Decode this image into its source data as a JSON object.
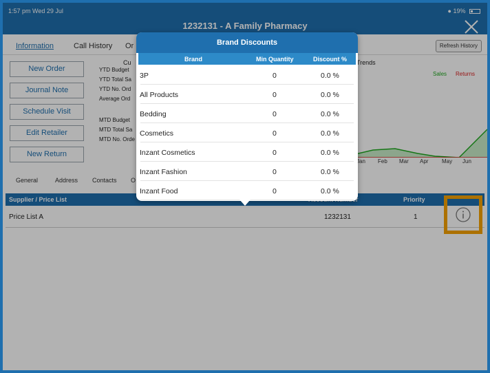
{
  "status_bar": {
    "time": "1:57 pm  Wed 29 Jul",
    "battery": "19%"
  },
  "title": "1232131 - A Family Pharmacy",
  "tabs": [
    {
      "label": "Information",
      "active": true
    },
    {
      "label": "Call History"
    },
    {
      "label": "Or"
    }
  ],
  "refresh_label": "Refresh History",
  "actions": [
    "New Order",
    "Journal Note",
    "Schedule Visit",
    "Edit Retailer",
    "New Return"
  ],
  "kpis": {
    "header": "Cu",
    "ytd": [
      "YTD Budget",
      "YTD Total Sa",
      "YTD No. Ord",
      "Average Ord"
    ],
    "mtd": [
      "MTD Budget",
      "MTD Total Sa",
      "MTD No. Orde"
    ]
  },
  "trends": {
    "title": "Trends",
    "legend": [
      "Sales",
      "Returns"
    ],
    "colors": {
      "sales": "#1fa81f",
      "returns": "#d92020"
    },
    "months": [
      "Jan",
      "Feb",
      "Mar",
      "Apr",
      "May",
      "Jun"
    ]
  },
  "sub_tabs": [
    "General",
    "Address",
    "Contacts",
    "O"
  ],
  "price_list": {
    "headers": [
      "Supplier / Price List",
      "Account Number",
      "Priority"
    ],
    "row": {
      "name": "Price List A",
      "account": "1232131",
      "priority": "1"
    },
    "info_icon": "info-circle-icon"
  },
  "popover": {
    "title": "Brand Discounts",
    "columns": [
      "Brand",
      "Min Quantity",
      "Discount %"
    ],
    "rows": [
      {
        "brand": "3P",
        "min_qty": "0",
        "discount": "0.0 %"
      },
      {
        "brand": "All Products",
        "min_qty": "0",
        "discount": "0.0 %"
      },
      {
        "brand": "Bedding",
        "min_qty": "0",
        "discount": "0.0 %"
      },
      {
        "brand": "Cosmetics",
        "min_qty": "0",
        "discount": "0.0 %"
      },
      {
        "brand": "Inzant Cosmetics",
        "min_qty": "0",
        "discount": "0.0 %"
      },
      {
        "brand": "Inzant Fashion",
        "min_qty": "0",
        "discount": "0.0 %"
      },
      {
        "brand": "Inzant Food",
        "min_qty": "0",
        "discount": "0.0 %"
      }
    ]
  },
  "colors": {
    "primary": "#1f6fae",
    "header_blue": "#2d8ac8",
    "highlight": "#f7a200"
  }
}
